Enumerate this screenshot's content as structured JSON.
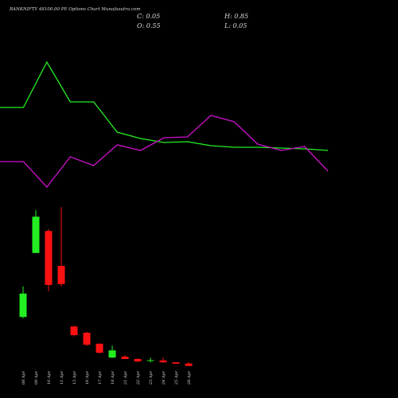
{
  "chart_data": [
    {
      "type": "candlestick",
      "title": "BANKNIFTY 48100.00 PE Options  Chart Munafasutra.com",
      "ohlc_labels": [
        "C: 0.05",
        "H: 0.85",
        "O: 0.55",
        "L: 0.05"
      ],
      "categories": [
        "08 Apr",
        "09 Apr",
        "10 Apr",
        "11 Apr",
        "15 Apr",
        "16 Apr",
        "17 Apr",
        "18 Apr",
        "21 Apr",
        "22 Apr",
        "23 Apr",
        "24 Apr",
        "25 Apr",
        "28 Apr"
      ],
      "open": [
        10.3,
        23.7,
        28.3,
        21,
        8.3,
        7,
        4.7,
        1.8,
        2,
        1.5,
        1.1,
        1.2,
        0.8,
        0.55
      ],
      "high": [
        16.7,
        32.7,
        28.7,
        33.3,
        8.5,
        7.2,
        4.8,
        4.3,
        2.3,
        1.7,
        1.8,
        1.8,
        0.8,
        0.85
      ],
      "low": [
        10,
        23.7,
        15.7,
        16.7,
        6.2,
        4.2,
        2.7,
        1.7,
        1.5,
        0.8,
        0.8,
        0.7,
        0.5,
        0.05
      ],
      "close": [
        15.2,
        31.3,
        17,
        17.2,
        6.5,
        4.5,
        2.8,
        3.3,
        1.5,
        1,
        1.25,
        0.8,
        0.5,
        0.05
      ],
      "up_color": "#22ee22",
      "down_color": "#ff1111"
    },
    {
      "type": "line",
      "series": [
        {
          "color": "#22ee22",
          "values": [
            115,
            115,
            172,
            122,
            122,
            84,
            76,
            71,
            72,
            67,
            65,
            65,
            64,
            63,
            61
          ]
        },
        {
          "color": "#cc11cc",
          "values": [
            47,
            47,
            15,
            53,
            42,
            68,
            61,
            77,
            78,
            105,
            97,
            69,
            61,
            66,
            35
          ]
        }
      ],
      "ylim": [
        0,
        200
      ]
    }
  ]
}
